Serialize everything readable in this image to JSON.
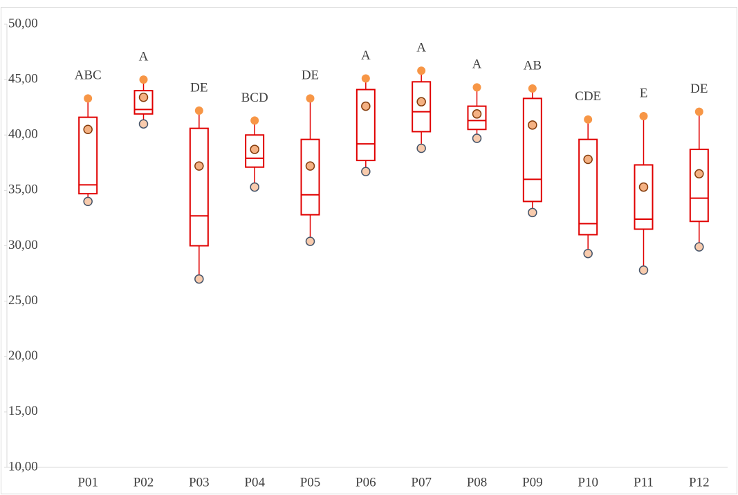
{
  "chart_data": {
    "type": "box",
    "categories": [
      "P01",
      "P02",
      "P03",
      "P04",
      "P05",
      "P06",
      "P07",
      "P08",
      "P09",
      "P10",
      "P11",
      "P12"
    ],
    "max": [
      43.3,
      45.0,
      42.2,
      41.3,
      43.3,
      45.1,
      45.8,
      44.3,
      44.2,
      41.4,
      41.7,
      42.1
    ],
    "q3": [
      41.6,
      44.0,
      40.6,
      40.0,
      39.6,
      44.1,
      44.8,
      42.6,
      43.3,
      39.6,
      37.3,
      38.7
    ],
    "median": [
      35.5,
      42.3,
      32.7,
      37.9,
      34.6,
      39.2,
      42.1,
      41.3,
      36.0,
      32.0,
      32.4,
      34.3
    ],
    "q1": [
      34.7,
      41.9,
      30.0,
      37.1,
      32.8,
      37.7,
      40.3,
      40.5,
      34.0,
      31.0,
      31.5,
      32.2
    ],
    "min": [
      34.0,
      41.0,
      27.0,
      35.3,
      30.4,
      36.7,
      38.8,
      39.7,
      33.0,
      29.3,
      27.8,
      29.9
    ],
    "mean": [
      40.5,
      43.4,
      37.2,
      38.7,
      37.2,
      42.6,
      43.0,
      41.9,
      40.9,
      37.8,
      35.3,
      36.5
    ],
    "annotations": [
      "ABC",
      "A",
      "DE",
      "BCD",
      "DE",
      "A",
      "A",
      "A",
      "AB",
      "CDE",
      "E",
      "DE"
    ],
    "ylim": [
      10,
      50
    ],
    "yticks": [
      {
        "value": 10,
        "label": "10,00"
      },
      {
        "value": 15,
        "label": "15,00"
      },
      {
        "value": 20,
        "label": "20,00"
      },
      {
        "value": 25,
        "label": "25,00"
      },
      {
        "value": 30,
        "label": "30,00"
      },
      {
        "value": 35,
        "label": "35,00"
      },
      {
        "value": 40,
        "label": "40,00"
      },
      {
        "value": 45,
        "label": "45,00"
      },
      {
        "value": 50,
        "label": "50,00"
      }
    ],
    "box_color": "#e00000",
    "max_color": "#f79646",
    "mean_color": "#f4b183",
    "min_color": "#f8cbad"
  }
}
